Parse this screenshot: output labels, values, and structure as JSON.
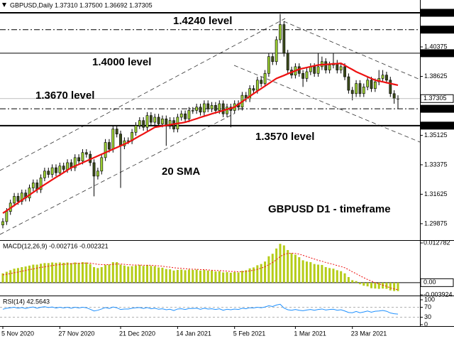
{
  "chart_data": [
    {
      "type": "candlestick",
      "title": "GBPUSD,Daily  1.37310 1.37500 1.36692 1.37305",
      "categories": [
        "5 Nov 2020",
        null,
        null,
        null,
        null,
        null,
        null,
        null,
        null,
        null,
        null,
        null,
        null,
        null,
        null,
        "27 Nov 2020",
        null,
        null,
        null,
        null,
        null,
        null,
        null,
        null,
        null,
        null,
        null,
        null,
        null,
        null,
        null,
        "21 Dec 2020",
        null,
        null,
        null,
        null,
        null,
        null,
        null,
        null,
        null,
        null,
        null,
        null,
        null,
        null,
        "14 Jan 2021",
        null,
        null,
        null,
        null,
        null,
        null,
        null,
        null,
        null,
        null,
        null,
        null,
        null,
        null,
        "5 Feb 2021",
        null,
        null,
        null,
        null,
        null,
        null,
        null,
        null,
        null,
        null,
        null,
        null,
        null,
        null,
        null,
        "1 Mar 2021",
        null,
        null,
        null,
        null,
        null,
        null,
        null,
        null,
        null,
        null,
        null,
        null,
        null,
        null,
        "23 Mar 2021",
        null,
        null,
        null,
        null,
        null,
        null,
        null,
        null,
        null,
        null,
        null,
        null
      ],
      "open": [
        1.298,
        1.3,
        1.306,
        1.311,
        1.315,
        1.312,
        1.317,
        1.314,
        1.32,
        1.323,
        1.319,
        1.326,
        1.33,
        1.328,
        1.332,
        1.329,
        1.333,
        1.331,
        1.335,
        1.332,
        1.338,
        1.336,
        1.341,
        1.34,
        1.335,
        1.327,
        1.33,
        1.338,
        1.347,
        1.343,
        1.355,
        1.352,
        1.345,
        1.348,
        1.348,
        1.353,
        1.357,
        1.36,
        1.356,
        1.363,
        1.359,
        1.362,
        1.358,
        1.361,
        1.357,
        1.36,
        1.355,
        1.362,
        1.364,
        1.361,
        1.366,
        1.366,
        1.368,
        1.365,
        1.37,
        1.367,
        1.369,
        1.366,
        1.37,
        1.364,
        1.368,
        1.366,
        1.37,
        1.368,
        1.375,
        1.373,
        1.379,
        1.378,
        1.384,
        1.382,
        1.388,
        1.398,
        1.395,
        1.408,
        1.417,
        1.4,
        1.39,
        1.387,
        1.392,
        1.388,
        1.385,
        1.389,
        1.392,
        1.388,
        1.392,
        1.395,
        1.39,
        1.393,
        1.394,
        1.39,
        1.392,
        1.386,
        1.378,
        1.376,
        1.382,
        1.376,
        1.38,
        1.384,
        1.379,
        1.383,
        1.385,
        1.387,
        1.384,
        1.376,
        1.3731
      ],
      "high": [
        1.302,
        1.308,
        1.313,
        1.317,
        1.317,
        1.319,
        1.319,
        1.322,
        1.325,
        1.325,
        1.328,
        1.332,
        1.332,
        1.334,
        1.334,
        1.335,
        1.335,
        1.337,
        1.337,
        1.34,
        1.34,
        1.343,
        1.343,
        1.342,
        1.337,
        1.332,
        1.34,
        1.349,
        1.349,
        1.357,
        1.357,
        1.354,
        1.35,
        1.35,
        1.355,
        1.359,
        1.362,
        1.362,
        1.365,
        1.365,
        1.364,
        1.364,
        1.363,
        1.363,
        1.362,
        1.362,
        1.364,
        1.366,
        1.366,
        1.368,
        1.368,
        1.37,
        1.37,
        1.372,
        1.372,
        1.371,
        1.371,
        1.372,
        1.372,
        1.37,
        1.37,
        1.372,
        1.372,
        1.377,
        1.377,
        1.381,
        1.381,
        1.386,
        1.386,
        1.39,
        1.4,
        1.4,
        1.41,
        1.4233,
        1.419,
        1.402,
        1.392,
        1.394,
        1.394,
        1.39,
        1.391,
        1.394,
        1.394,
        1.4,
        1.398,
        1.397,
        1.395,
        1.4,
        1.396,
        1.394,
        1.394,
        1.388,
        1.38,
        1.384,
        1.384,
        1.382,
        1.386,
        1.386,
        1.385,
        1.39,
        1.39,
        1.389,
        1.386,
        1.378,
        1.375
      ],
      "low": [
        1.296,
        1.298,
        1.304,
        1.309,
        1.31,
        1.31,
        1.312,
        1.312,
        1.318,
        1.317,
        1.317,
        1.324,
        1.326,
        1.326,
        1.327,
        1.327,
        1.329,
        1.329,
        1.33,
        1.33,
        1.334,
        1.334,
        1.338,
        1.333,
        1.315,
        1.325,
        1.328,
        1.336,
        1.341,
        1.341,
        1.35,
        1.32,
        1.343,
        1.346,
        1.346,
        1.351,
        1.355,
        1.354,
        1.354,
        1.357,
        1.357,
        1.356,
        1.356,
        1.345,
        1.355,
        1.353,
        1.353,
        1.36,
        1.359,
        1.359,
        1.364,
        1.364,
        1.363,
        1.363,
        1.365,
        1.365,
        1.364,
        1.364,
        1.362,
        1.362,
        1.356,
        1.364,
        1.366,
        1.366,
        1.371,
        1.371,
        1.376,
        1.376,
        1.38,
        1.38,
        1.386,
        1.393,
        1.393,
        1.406,
        1.398,
        1.388,
        1.385,
        1.385,
        1.386,
        1.38,
        1.383,
        1.387,
        1.386,
        1.386,
        1.39,
        1.388,
        1.388,
        1.391,
        1.388,
        1.388,
        1.384,
        1.376,
        1.372,
        1.374,
        1.374,
        1.374,
        1.378,
        1.377,
        1.377,
        1.381,
        1.383,
        1.382,
        1.374,
        1.37,
        1.36692
      ],
      "close": [
        1.3,
        1.306,
        1.311,
        1.315,
        1.312,
        1.317,
        1.314,
        1.32,
        1.323,
        1.319,
        1.326,
        1.33,
        1.328,
        1.332,
        1.329,
        1.333,
        1.331,
        1.335,
        1.332,
        1.338,
        1.336,
        1.341,
        1.34,
        1.335,
        1.327,
        1.33,
        1.338,
        1.347,
        1.343,
        1.355,
        1.352,
        1.345,
        1.348,
        1.348,
        1.353,
        1.357,
        1.36,
        1.356,
        1.363,
        1.359,
        1.362,
        1.358,
        1.361,
        1.357,
        1.36,
        1.355,
        1.362,
        1.364,
        1.361,
        1.366,
        1.366,
        1.368,
        1.365,
        1.37,
        1.367,
        1.369,
        1.366,
        1.37,
        1.364,
        1.368,
        1.366,
        1.37,
        1.368,
        1.375,
        1.373,
        1.379,
        1.378,
        1.384,
        1.382,
        1.388,
        1.398,
        1.395,
        1.408,
        1.417,
        1.4,
        1.39,
        1.387,
        1.392,
        1.388,
        1.385,
        1.389,
        1.392,
        1.388,
        1.392,
        1.395,
        1.39,
        1.393,
        1.394,
        1.39,
        1.392,
        1.386,
        1.378,
        1.376,
        1.382,
        1.376,
        1.38,
        1.384,
        1.379,
        1.383,
        1.385,
        1.387,
        1.384,
        1.376,
        1.3731,
        1.37305
      ],
      "up_color": "#9acd32",
      "down_color": "#3b4a1a",
      "series": [
        {
          "name": "20 SMA",
          "color": "#ee1111",
          "values": [
            1.305,
            1.3065,
            1.308,
            1.3096,
            1.3112,
            1.3127,
            1.3143,
            1.3158,
            1.3174,
            1.3189,
            1.3205,
            1.322,
            1.3234,
            1.3249,
            1.3263,
            1.3277,
            1.3291,
            1.3306,
            1.332,
            1.333,
            1.334,
            1.335,
            1.336,
            1.337,
            1.338,
            1.339,
            1.34,
            1.341,
            1.342,
            1.343,
            1.344,
            1.345,
            1.346,
            1.347,
            1.3483,
            1.3496,
            1.3509,
            1.3521,
            1.3534,
            1.3547,
            1.356,
            1.3564,
            1.3568,
            1.3571,
            1.3575,
            1.3579,
            1.3583,
            1.3586,
            1.359,
            1.3597,
            1.3604,
            1.3611,
            1.3619,
            1.3626,
            1.3633,
            1.364,
            1.3647,
            1.3653,
            1.366,
            1.3667,
            1.3673,
            1.368,
            1.3696,
            1.3712,
            1.3728,
            1.3744,
            1.376,
            1.3775,
            1.379,
            1.3805,
            1.382,
            1.3835,
            1.385,
            1.3859,
            1.3868,
            1.3878,
            1.3887,
            1.3896,
            1.3905,
            1.391,
            1.3915,
            1.392,
            1.3925,
            1.393,
            1.3932,
            1.3933,
            1.3935,
            1.3937,
            1.3938,
            1.394,
            1.3928,
            1.3915,
            1.3903,
            1.389,
            1.388,
            1.387,
            1.386,
            1.385,
            1.384,
            1.3835,
            1.383,
            1.3825,
            1.382,
            1.3815,
            1.381
          ]
        }
      ],
      "ylim": [
        1.289,
        1.4316
      ],
      "yticks": [
        1.40375,
        1.38625,
        1.35125,
        1.33375,
        1.31625,
        1.29875
      ],
      "levels": [
        {
          "value": 1.424,
          "label": "1.42400",
          "style": "bold"
        },
        {
          "value": 1.414,
          "label": "1.41400",
          "style": "dashdot"
        },
        {
          "value": 1.4,
          "label": "1.40000",
          "style": "solid"
        },
        {
          "value": 1.367,
          "label": "1.36700",
          "style": "dashdot"
        },
        {
          "value": 1.357,
          "label": "1.35700",
          "style": "bold"
        }
      ],
      "last_price": 1.37305,
      "annotations": [
        "1.4240 level",
        "1.4000 level",
        "1.3670 level",
        "1.3570 level",
        "GBPUSD D1 - timeframe"
      ],
      "grid": false
    },
    {
      "type": "bar",
      "title": "MACD(12,26,9) -0.002716 -0.002321",
      "color": "#b5cc18",
      "values": [
        0.003,
        0.0035,
        0.004,
        0.0045,
        0.0047,
        0.005,
        0.0052,
        0.0055,
        0.0058,
        0.0058,
        0.0061,
        0.0063,
        0.0063,
        0.0065,
        0.0064,
        0.0065,
        0.0064,
        0.0065,
        0.0063,
        0.0065,
        0.0064,
        0.0066,
        0.0065,
        0.006,
        0.005,
        0.0047,
        0.005,
        0.0057,
        0.0058,
        0.0066,
        0.0066,
        0.0058,
        0.0055,
        0.0052,
        0.0053,
        0.0055,
        0.0057,
        0.0054,
        0.0057,
        0.0054,
        0.0053,
        0.0049,
        0.0048,
        0.0044,
        0.0043,
        0.0039,
        0.0041,
        0.0042,
        0.004,
        0.0042,
        0.0041,
        0.0042,
        0.0039,
        0.0041,
        0.0039,
        0.0039,
        0.0036,
        0.0037,
        0.0033,
        0.0034,
        0.0032,
        0.0034,
        0.0033,
        0.0038,
        0.004,
        0.0046,
        0.0049,
        0.0056,
        0.006,
        0.0068,
        0.0085,
        0.0093,
        0.011,
        0.0125,
        0.012,
        0.0105,
        0.0095,
        0.009,
        0.0082,
        0.0072,
        0.0068,
        0.0066,
        0.006,
        0.0058,
        0.0057,
        0.005,
        0.0047,
        0.0045,
        0.004,
        0.0037,
        0.003,
        0.0018,
        0.0008,
        0.0005,
        -0.0005,
        -0.001,
        -0.0012,
        -0.0018,
        -0.0019,
        -0.002,
        -0.0019,
        -0.002,
        -0.0025,
        -0.0027,
        -0.002716
      ],
      "signal": {
        "color": "#ee1111",
        "values": [
          0.0025,
          0.0027,
          0.0029,
          0.0032,
          0.0034,
          0.0037,
          0.0039,
          0.0042,
          0.0044,
          0.0047,
          0.0049,
          0.0051,
          0.0053,
          0.0055,
          0.0057,
          0.0058,
          0.0059,
          0.006,
          0.0061,
          0.0062,
          0.0062,
          0.0063,
          0.0063,
          0.0063,
          0.0061,
          0.0059,
          0.0058,
          0.0058,
          0.0058,
          0.0059,
          0.006,
          0.006,
          0.0059,
          0.0058,
          0.0057,
          0.0057,
          0.0057,
          0.0056,
          0.0056,
          0.0056,
          0.0055,
          0.0054,
          0.0053,
          0.0051,
          0.005,
          0.0048,
          0.0047,
          0.0046,
          0.0045,
          0.0044,
          0.0043,
          0.0043,
          0.0042,
          0.0042,
          0.0041,
          0.004,
          0.0039,
          0.0039,
          0.0038,
          0.0037,
          0.0036,
          0.0036,
          0.0035,
          0.0035,
          0.0036,
          0.0038,
          0.004,
          0.0043,
          0.0047,
          0.0051,
          0.0058,
          0.0065,
          0.0074,
          0.0084,
          0.0091,
          0.0094,
          0.0095,
          0.0094,
          0.0092,
          0.0088,
          0.0084,
          0.008,
          0.0076,
          0.0072,
          0.0069,
          0.0065,
          0.0062,
          0.0059,
          0.0055,
          0.0052,
          0.0048,
          0.0042,
          0.0035,
          0.0029,
          0.0022,
          0.0016,
          0.001,
          0.0005,
          0.0,
          -0.0004,
          -0.0008,
          -0.0012,
          -0.0017,
          -0.002,
          -0.002321
        ]
      },
      "ylim": [
        -0.003924,
        0.012782
      ],
      "yticks": [
        0.012782,
        {
          "value": 0,
          "label": "0.00"
        },
        -0.003924
      ]
    },
    {
      "type": "line",
      "title": "RSI(14) 42.5643",
      "color": "#1e90ff",
      "values": [
        62,
        66,
        68,
        70,
        66,
        69,
        65,
        69,
        71,
        66,
        70,
        72,
        69,
        71,
        67,
        70,
        67,
        70,
        66,
        70,
        67,
        70,
        68,
        62,
        55,
        58,
        63,
        69,
        65,
        71,
        68,
        61,
        63,
        63,
        66,
        68,
        69,
        65,
        69,
        64,
        66,
        62,
        64,
        60,
        62,
        57,
        63,
        64,
        61,
        65,
        65,
        66,
        62,
        66,
        63,
        64,
        61,
        64,
        58,
        62,
        60,
        63,
        61,
        66,
        64,
        68,
        67,
        70,
        68,
        71,
        76,
        73,
        79,
        82,
        67,
        60,
        58,
        61,
        58,
        56,
        59,
        61,
        58,
        61,
        63,
        59,
        61,
        62,
        58,
        60,
        55,
        49,
        48,
        53,
        48,
        51,
        55,
        50,
        54,
        55,
        57,
        54,
        47,
        44,
        42.5643
      ],
      "ylim": [
        0,
        100
      ],
      "yticks": [
        100,
        70,
        30,
        0
      ]
    }
  ]
}
